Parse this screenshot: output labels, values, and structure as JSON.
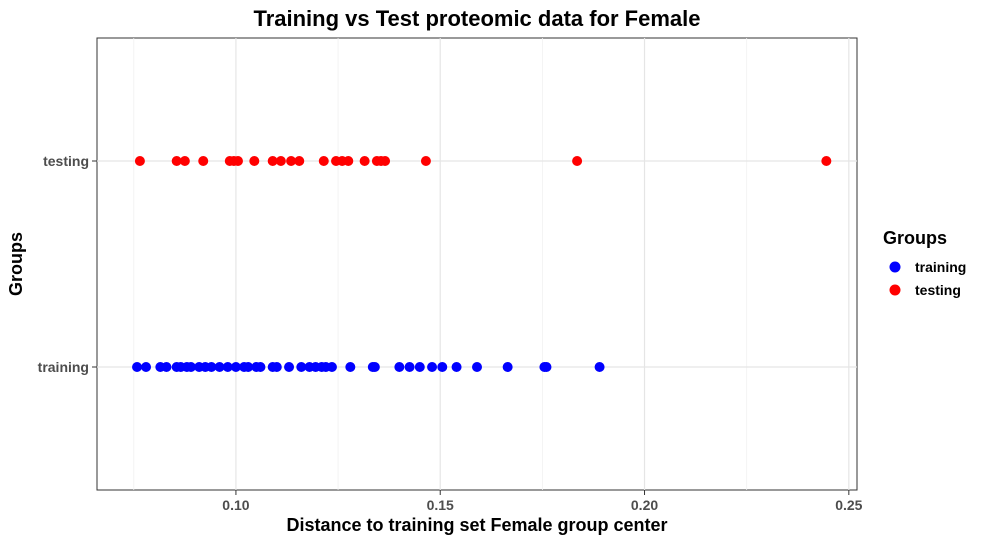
{
  "chart_data": {
    "type": "scatter",
    "title": "Training vs Test proteomic data for Female",
    "xlabel": "Distance to training set Female group center",
    "ylabel": "Groups",
    "xlim": [
      0.066,
      0.252
    ],
    "x_ticks": [
      0.1,
      0.15,
      0.2,
      0.25
    ],
    "x_tick_labels": [
      "0.10",
      "0.15",
      "0.20",
      "0.25"
    ],
    "categories": [
      "training",
      "testing"
    ],
    "grid": true,
    "legend": {
      "title": "Groups",
      "position": "right"
    },
    "series": [
      {
        "name": "training",
        "color": "#0000FF",
        "y": "training",
        "x": [
          0.0758,
          0.078,
          0.0815,
          0.083,
          0.0855,
          0.0865,
          0.088,
          0.089,
          0.091,
          0.0925,
          0.094,
          0.096,
          0.098,
          0.1,
          0.102,
          0.103,
          0.105,
          0.106,
          0.109,
          0.11,
          0.113,
          0.116,
          0.118,
          0.1195,
          0.121,
          0.122,
          0.1235,
          0.128,
          0.1335,
          0.134,
          0.14,
          0.1425,
          0.145,
          0.148,
          0.1505,
          0.154,
          0.159,
          0.1665,
          0.1755,
          0.176,
          0.189
        ]
      },
      {
        "name": "testing",
        "color": "#FF0000",
        "y": "testing",
        "x": [
          0.0765,
          0.0855,
          0.0875,
          0.092,
          0.0985,
          0.0995,
          0.1005,
          0.1045,
          0.109,
          0.111,
          0.1135,
          0.1155,
          0.1215,
          0.1245,
          0.126,
          0.1275,
          0.1315,
          0.1345,
          0.1355,
          0.1365,
          0.1465,
          0.1835,
          0.2445
        ]
      }
    ]
  }
}
